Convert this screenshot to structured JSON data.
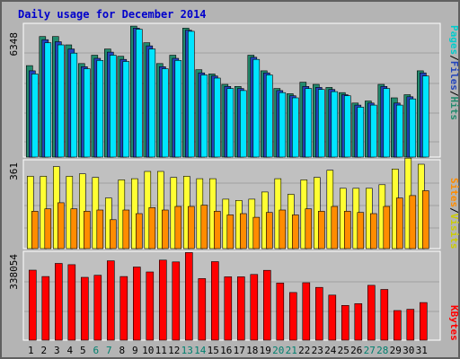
{
  "title": "Daily usage for December 2014",
  "chart_data": [
    {
      "type": "bar",
      "panel": "traffic",
      "max_label": "6348",
      "ylim": [
        0,
        6348
      ],
      "categories": [
        "1",
        "2",
        "3",
        "4",
        "5",
        "6",
        "7",
        "8",
        "9",
        "10",
        "11",
        "12",
        "13",
        "14",
        "15",
        "16",
        "17",
        "18",
        "19",
        "20",
        "21",
        "22",
        "23",
        "24",
        "25",
        "26",
        "27",
        "28",
        "29",
        "30",
        "31"
      ],
      "series": [
        {
          "name": "Hits",
          "color": "#228b6e",
          "values": [
            4400,
            5800,
            5800,
            5400,
            4500,
            4900,
            5200,
            4850,
            6300,
            5500,
            4500,
            4900,
            6200,
            4200,
            4000,
            3500,
            3400,
            4900,
            4150,
            3300,
            3050,
            3600,
            3500,
            3350,
            3100,
            2600,
            2700,
            3500,
            2850,
            3000,
            4150
          ]
        },
        {
          "name": "Files",
          "color": "#2244bb",
          "values": [
            4150,
            5650,
            5550,
            5200,
            4350,
            4750,
            5050,
            4700,
            6200,
            5350,
            4350,
            4750,
            6100,
            4050,
            3900,
            3400,
            3300,
            4800,
            4050,
            3200,
            2950,
            3400,
            3350,
            3250,
            3000,
            2500,
            2600,
            3400,
            2600,
            2900,
            4050
          ]
        },
        {
          "name": "Pages",
          "color": "#00e5ff",
          "values": [
            4000,
            5500,
            5400,
            5000,
            4250,
            4650,
            4900,
            4600,
            6150,
            5200,
            4250,
            4650,
            6050,
            3950,
            3800,
            3300,
            3200,
            4700,
            3950,
            3100,
            2850,
            3300,
            3250,
            3150,
            2950,
            2400,
            2500,
            3300,
            2500,
            2800,
            3900
          ]
        }
      ]
    },
    {
      "type": "bar",
      "panel": "visitors",
      "max_label": "361",
      "ylim": [
        0,
        361
      ],
      "categories": [
        "1",
        "2",
        "3",
        "4",
        "5",
        "6",
        "7",
        "8",
        "9",
        "10",
        "11",
        "12",
        "13",
        "14",
        "15",
        "16",
        "17",
        "18",
        "19",
        "20",
        "21",
        "22",
        "23",
        "24",
        "25",
        "26",
        "27",
        "28",
        "29",
        "30",
        "31"
      ],
      "series": [
        {
          "name": "Visits",
          "color": "#ffff33",
          "values": [
            300,
            300,
            340,
            300,
            310,
            295,
            210,
            285,
            290,
            320,
            320,
            295,
            300,
            290,
            290,
            205,
            200,
            205,
            235,
            290,
            225,
            285,
            295,
            325,
            250,
            250,
            250,
            265,
            330,
            375,
            350
          ]
        },
        {
          "name": "Sites",
          "color": "#ff8c00",
          "values": [
            155,
            165,
            190,
            165,
            155,
            160,
            120,
            160,
            145,
            170,
            160,
            175,
            175,
            180,
            155,
            140,
            145,
            130,
            150,
            160,
            140,
            165,
            155,
            175,
            155,
            150,
            145,
            175,
            210,
            220,
            240
          ]
        }
      ]
    },
    {
      "type": "bar",
      "panel": "kbytes",
      "max_label": "338054",
      "ylim": [
        0,
        338054
      ],
      "categories": [
        "1",
        "2",
        "3",
        "4",
        "5",
        "6",
        "7",
        "8",
        "9",
        "10",
        "11",
        "12",
        "13",
        "14",
        "15",
        "16",
        "17",
        "18",
        "19",
        "20",
        "21",
        "22",
        "23",
        "24",
        "25",
        "26",
        "27",
        "28",
        "29",
        "30",
        "31"
      ],
      "series": [
        {
          "name": "KBytes",
          "color": "#ff0000",
          "values": [
            272000,
            247000,
            298000,
            293000,
            244000,
            252000,
            308000,
            247000,
            284000,
            265000,
            311000,
            304000,
            340000,
            239000,
            305000,
            246000,
            246000,
            255000,
            271000,
            222000,
            185000,
            223000,
            205000,
            175000,
            135000,
            142000,
            213000,
            197000,
            115000,
            120000,
            146000
          ]
        }
      ]
    }
  ],
  "legend_labels": {
    "traffic": [
      "Pages",
      "/",
      "Files",
      "/",
      "Hits"
    ],
    "visitors": [
      "Sites",
      "/",
      "Visits"
    ],
    "kbytes": [
      "KBytes"
    ]
  },
  "legend_colors": {
    "traffic": [
      "#00cccc",
      "#000000",
      "#2244bb",
      "#000000",
      "#228b6e"
    ],
    "visitors": [
      "#ff8c00",
      "#000000",
      "#cccc00"
    ],
    "kbytes": [
      "#ff0000"
    ]
  },
  "weekend_days": [
    "6",
    "7",
    "13",
    "14",
    "20",
    "21",
    "27",
    "28"
  ],
  "weekday_color": "#000000",
  "weekend_color": "#00806f"
}
